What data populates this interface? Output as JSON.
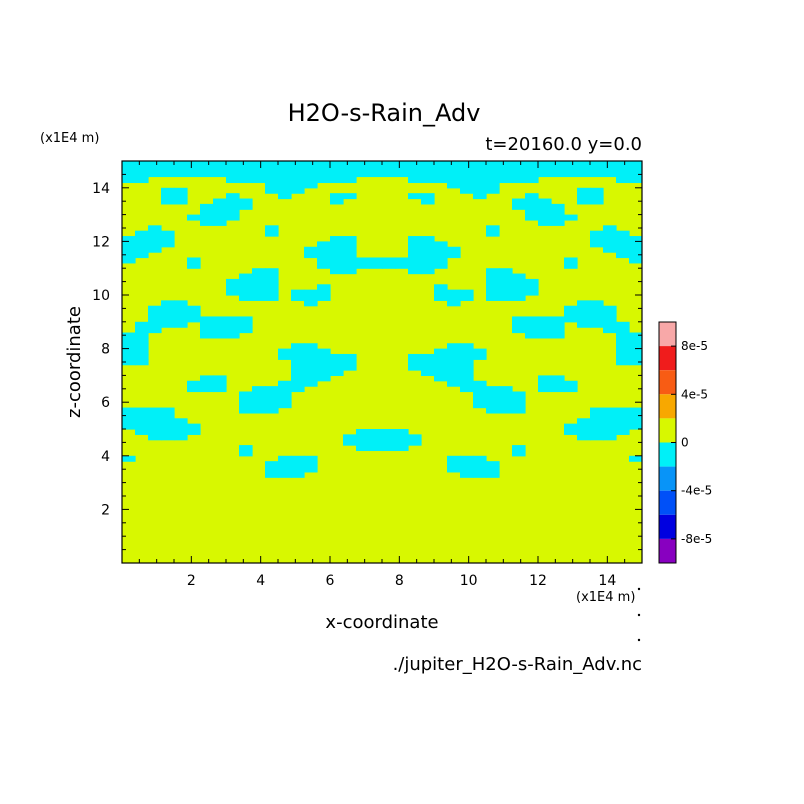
{
  "chart_data": {
    "type": "heatmap",
    "title": "H2O-s-Rain_Adv",
    "subtitle": "t=20160.0 y=0.0",
    "xlabel": "x-coordinate",
    "ylabel": "z-coordinate",
    "x_unit": "(x1E4 m)",
    "y_unit": "(x1E4 m)",
    "footer": "./jupiter_H2O-s-Rain_Adv.nc",
    "xlim": [
      0,
      15
    ],
    "ylim": [
      0,
      15
    ],
    "x_ticks": [
      2,
      4,
      6,
      8,
      10,
      12,
      14
    ],
    "y_ticks": [
      2,
      4,
      6,
      8,
      10,
      12,
      14
    ],
    "grid": false,
    "field": {
      "description": "contour field (values in data units, levels -1e-4..1e-4 step 2e-5)",
      "x_symmetric_about": 7.5,
      "region_near_zero_below_z": 3.0,
      "field_upper_boundary_z": 15,
      "dominant_levels": [
        -2e-05,
        0
      ]
    },
    "colorbar": {
      "labels": [
        "8e-5",
        "4e-5",
        "0",
        "-4e-5",
        "-8e-5"
      ],
      "label_values": [
        8e-05,
        4e-05,
        0,
        -4e-05,
        -8e-05
      ],
      "levels": [
        {
          "min": 8e-05,
          "max": 0.0001,
          "color": "#f8a8a8"
        },
        {
          "min": 6e-05,
          "max": 8e-05,
          "color": "#f01c1c"
        },
        {
          "min": 4e-05,
          "max": 6e-05,
          "color": "#f85c14"
        },
        {
          "min": 2e-05,
          "max": 4e-05,
          "color": "#f8a800"
        },
        {
          "min": 0,
          "max": 2e-05,
          "color": "#d8f800"
        },
        {
          "min": -2e-05,
          "max": 0,
          "color": "#00f0f8"
        },
        {
          "min": -4e-05,
          "max": -2e-05,
          "color": "#0894f8"
        },
        {
          "min": -6e-05,
          "max": -4e-05,
          "color": "#0050f8"
        },
        {
          "min": -8e-05,
          "max": -6e-05,
          "color": "#0000e0"
        },
        {
          "min": -0.0001,
          "max": -8e-05,
          "color": "#8800c0"
        }
      ]
    },
    "colors": {
      "positive_small": "#d8f800",
      "negative_small": "#00f0f8",
      "axis": "#000000",
      "background": "#ffffff"
    }
  }
}
